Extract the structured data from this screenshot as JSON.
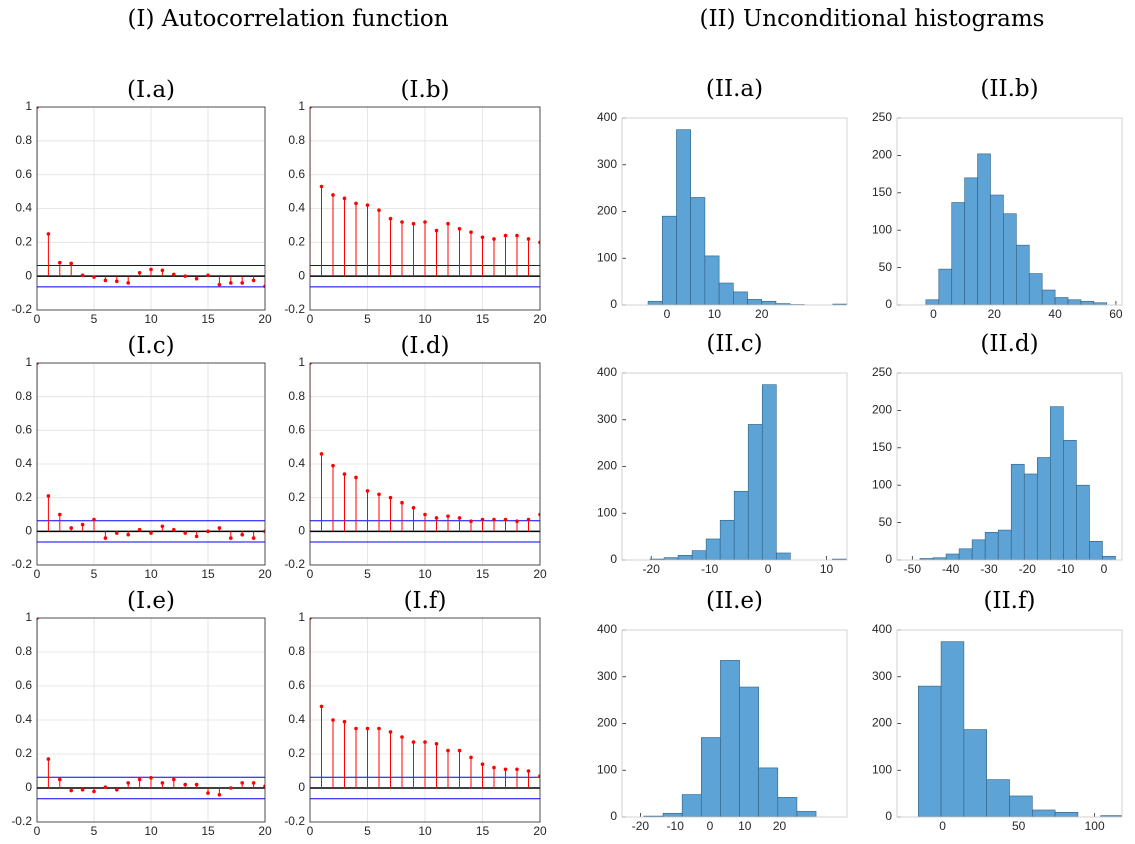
{
  "headings": [
    "(I) Autocorrelation function",
    "(II) Unconditional histograms"
  ],
  "chart_data": [
    {
      "type": "stem",
      "title": "(I.a)",
      "color": "#ff0000",
      "bounds_color": "#0000ff",
      "grid": true,
      "x": [
        0,
        1,
        2,
        3,
        4,
        5,
        6,
        7,
        8,
        9,
        10,
        11,
        12,
        13,
        14,
        15,
        16,
        17,
        18,
        19,
        20
      ],
      "values": [
        1,
        0.25,
        0.08,
        0.075,
        0.005,
        -0.005,
        -0.025,
        -0.03,
        -0.04,
        0.02,
        0.04,
        0.035,
        0.01,
        0.0,
        -0.015,
        0.005,
        -0.05,
        -0.04,
        -0.04,
        -0.025,
        -0.06
      ],
      "confidence_bounds": [
        0.063,
        -0.063
      ],
      "xlim": [
        0,
        20
      ],
      "xticks": [
        0,
        5,
        10,
        15,
        20
      ],
      "ylim": [
        -0.2,
        1
      ],
      "yticks": [
        -0.2,
        0,
        0.2,
        0.4,
        0.6,
        0.8,
        1
      ]
    },
    {
      "type": "stem",
      "title": "(I.b)",
      "color": "#ff0000",
      "bounds_color": "#0000ff",
      "grid": true,
      "x": [
        0,
        1,
        2,
        3,
        4,
        5,
        6,
        7,
        8,
        9,
        10,
        11,
        12,
        13,
        14,
        15,
        16,
        17,
        18,
        19,
        20
      ],
      "values": [
        1,
        0.53,
        0.48,
        0.46,
        0.43,
        0.42,
        0.39,
        0.34,
        0.32,
        0.31,
        0.32,
        0.27,
        0.31,
        0.28,
        0.26,
        0.23,
        0.22,
        0.24,
        0.24,
        0.22,
        0.2
      ],
      "confidence_bounds": [
        0.063,
        -0.063
      ],
      "xlim": [
        0,
        20
      ],
      "xticks": [
        0,
        5,
        10,
        15,
        20
      ],
      "ylim": [
        -0.2,
        1
      ],
      "yticks": [
        -0.2,
        0,
        0.2,
        0.4,
        0.6,
        0.8,
        1
      ]
    },
    {
      "type": "stem",
      "title": "(I.c)",
      "color": "#ff0000",
      "bounds_color": "#0000ff",
      "grid": true,
      "x": [
        0,
        1,
        2,
        3,
        4,
        5,
        6,
        7,
        8,
        9,
        10,
        11,
        12,
        13,
        14,
        15,
        16,
        17,
        18,
        19,
        20
      ],
      "values": [
        1,
        0.21,
        0.1,
        0.02,
        0.04,
        0.07,
        -0.04,
        -0.01,
        -0.02,
        0.01,
        -0.01,
        0.03,
        0.01,
        -0.01,
        -0.03,
        0.0,
        0.02,
        -0.04,
        -0.02,
        -0.04,
        0.0
      ],
      "confidence_bounds": [
        0.063,
        -0.063
      ],
      "xlim": [
        0,
        20
      ],
      "xticks": [
        0,
        5,
        10,
        15,
        20
      ],
      "ylim": [
        -0.2,
        1
      ],
      "yticks": [
        -0.2,
        0,
        0.2,
        0.4,
        0.6,
        0.8,
        1
      ]
    },
    {
      "type": "stem",
      "title": "(I.d)",
      "color": "#ff0000",
      "bounds_color": "#0000ff",
      "grid": true,
      "x": [
        0,
        1,
        2,
        3,
        4,
        5,
        6,
        7,
        8,
        9,
        10,
        11,
        12,
        13,
        14,
        15,
        16,
        17,
        18,
        19,
        20
      ],
      "values": [
        1,
        0.46,
        0.39,
        0.34,
        0.32,
        0.24,
        0.22,
        0.2,
        0.17,
        0.14,
        0.1,
        0.08,
        0.09,
        0.08,
        0.06,
        0.07,
        0.07,
        0.07,
        0.06,
        0.07,
        0.1
      ],
      "confidence_bounds": [
        0.063,
        -0.063
      ],
      "xlim": [
        0,
        20
      ],
      "xticks": [
        0,
        5,
        10,
        15,
        20
      ],
      "ylim": [
        -0.2,
        1
      ],
      "yticks": [
        -0.2,
        0,
        0.2,
        0.4,
        0.6,
        0.8,
        1
      ]
    },
    {
      "type": "stem",
      "title": "(I.e)",
      "color": "#ff0000",
      "bounds_color": "#0000ff",
      "grid": true,
      "x": [
        0,
        1,
        2,
        3,
        4,
        5,
        6,
        7,
        8,
        9,
        10,
        11,
        12,
        13,
        14,
        15,
        16,
        17,
        18,
        19,
        20
      ],
      "values": [
        1,
        0.17,
        0.05,
        -0.015,
        -0.01,
        -0.02,
        0.005,
        -0.01,
        0.03,
        0.05,
        0.06,
        0.03,
        0.05,
        0.02,
        0.02,
        -0.03,
        -0.04,
        0.0,
        0.03,
        0.03,
        0.01
      ],
      "confidence_bounds": [
        0.063,
        -0.063
      ],
      "xlim": [
        0,
        20
      ],
      "xticks": [
        0,
        5,
        10,
        15,
        20
      ],
      "ylim": [
        -0.2,
        1
      ],
      "yticks": [
        -0.2,
        0,
        0.2,
        0.4,
        0.6,
        0.8,
        1
      ]
    },
    {
      "type": "stem",
      "title": "(I.f)",
      "color": "#ff0000",
      "bounds_color": "#0000ff",
      "grid": true,
      "x": [
        0,
        1,
        2,
        3,
        4,
        5,
        6,
        7,
        8,
        9,
        10,
        11,
        12,
        13,
        14,
        15,
        16,
        17,
        18,
        19,
        20
      ],
      "values": [
        1,
        0.48,
        0.4,
        0.39,
        0.35,
        0.35,
        0.35,
        0.33,
        0.3,
        0.27,
        0.27,
        0.26,
        0.22,
        0.22,
        0.18,
        0.14,
        0.12,
        0.11,
        0.11,
        0.1,
        0.07
      ],
      "confidence_bounds": [
        0.063,
        -0.063
      ],
      "xlim": [
        0,
        20
      ],
      "xticks": [
        0,
        5,
        10,
        15,
        20
      ],
      "ylim": [
        -0.2,
        1
      ],
      "yticks": [
        -0.2,
        0,
        0.2,
        0.4,
        0.6,
        0.8,
        1
      ]
    },
    {
      "type": "histogram",
      "title": "(II.a)",
      "color": "#5ea3d6",
      "grid": false,
      "bins": [
        -4,
        -1,
        2,
        5,
        8,
        11,
        14,
        17,
        20,
        23,
        26,
        29,
        32,
        35,
        38
      ],
      "values": [
        8,
        190,
        375,
        230,
        105,
        47,
        28,
        12,
        8,
        3,
        1,
        0,
        0,
        2
      ],
      "xlim": [
        -9.5,
        38
      ],
      "xticks": [
        0,
        10,
        20
      ],
      "ylim": [
        0,
        400
      ],
      "yticks": [
        0,
        100,
        200,
        300,
        400
      ]
    },
    {
      "type": "histogram",
      "title": "(II.b)",
      "color": "#5ea3d6",
      "grid": false,
      "bins": [
        -2.5,
        1.75,
        6,
        10.25,
        14.5,
        18.75,
        23,
        27.25,
        31.5,
        35.75,
        40,
        44.25,
        48.5,
        52.75,
        57
      ],
      "values": [
        7,
        48,
        137,
        170,
        202,
        147,
        122,
        80,
        42,
        20,
        10,
        7,
        5,
        3
      ],
      "xlim": [
        -12,
        62
      ],
      "xticks": [
        0,
        20,
        40,
        60
      ],
      "ylim": [
        0,
        250
      ],
      "yticks": [
        0,
        50,
        100,
        150,
        200,
        250
      ]
    },
    {
      "type": "histogram",
      "title": "(II.c)",
      "color": "#5ea3d6",
      "grid": false,
      "bins": [
        -20.2,
        -17.8,
        -15.4,
        -13,
        -10.6,
        -8.2,
        -5.8,
        -3.4,
        -1,
        1.4,
        3.8,
        6.2,
        8.6,
        11,
        13.4
      ],
      "values": [
        2,
        5,
        10,
        20,
        45,
        85,
        147,
        290,
        375,
        15,
        0,
        0,
        0,
        2
      ],
      "xlim": [
        -25,
        13.5
      ],
      "xticks": [
        -20,
        -10,
        0,
        10
      ],
      "ylim": [
        0,
        400
      ],
      "yticks": [
        0,
        100,
        200,
        300,
        400
      ]
    },
    {
      "type": "histogram",
      "title": "(II.d)",
      "color": "#5ea3d6",
      "grid": false,
      "bins": [
        -48,
        -44.6,
        -41.2,
        -37.8,
        -34.4,
        -31,
        -27.6,
        -24.2,
        -20.8,
        -17.4,
        -14,
        -10.6,
        -7.2,
        -3.8,
        -0.4,
        3
      ],
      "values": [
        2,
        3,
        8,
        15,
        27,
        37,
        40,
        128,
        115,
        137,
        205,
        160,
        100,
        25,
        5
      ],
      "xlim": [
        -54,
        4.7
      ],
      "xticks": [
        -50,
        -40,
        -30,
        -20,
        -10,
        0
      ],
      "ylim": [
        0,
        250
      ],
      "yticks": [
        0,
        50,
        100,
        150,
        200,
        250
      ]
    },
    {
      "type": "histogram",
      "title": "(II.e)",
      "color": "#5ea3d6",
      "grid": false,
      "bins": [
        -19,
        -13.5,
        -8,
        -2.5,
        3,
        8.5,
        14,
        19.5,
        25,
        30.5
      ],
      "values": [
        2,
        8,
        48,
        170,
        335,
        278,
        105,
        42,
        12
      ],
      "xlim": [
        -25.3,
        39.4
      ],
      "xticks": [
        -20,
        -10,
        0,
        10,
        20
      ],
      "ylim": [
        0,
        400
      ],
      "yticks": [
        0,
        100,
        200,
        300,
        400
      ]
    },
    {
      "type": "histogram",
      "title": "(II.f)",
      "color": "#5ea3d6",
      "grid": false,
      "bins": [
        -16,
        -1,
        14,
        29,
        44,
        59,
        74,
        89,
        104,
        119
      ],
      "values": [
        280,
        375,
        187,
        80,
        45,
        15,
        10,
        0,
        3
      ],
      "xlim": [
        -30,
        118
      ],
      "xticks": [
        0,
        50,
        100
      ],
      "ylim": [
        0,
        400
      ],
      "yticks": [
        0,
        100,
        200,
        300,
        400
      ]
    }
  ]
}
